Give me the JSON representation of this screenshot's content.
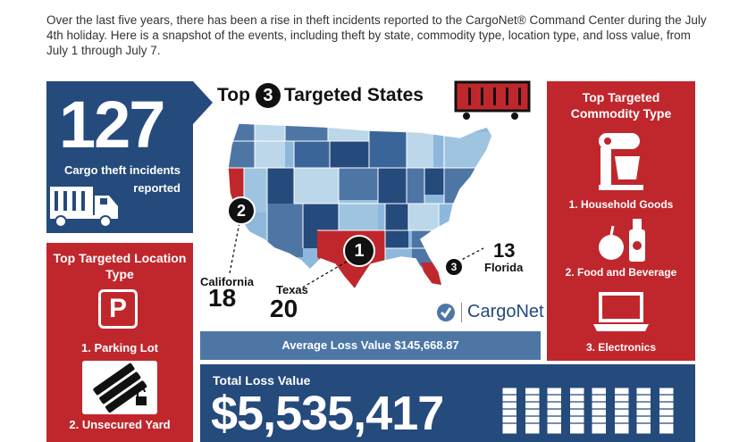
{
  "intro": "Over the last five years, there has been a rise in theft incidents reported to the CargoNet® Command Center during the July 4th holiday. Here is a snapshot of the events, including theft by state, commodity type, location type, and loss value, from July 1 through July 7.",
  "incidents": {
    "count": "127",
    "label": "Cargo theft incidents reported"
  },
  "location": {
    "heading": "Top Targeted Location Type",
    "parking_glyph": "P",
    "items": [
      "1. Parking Lot",
      "2. Unsecured Yard"
    ]
  },
  "states": {
    "title_pre": "Top",
    "title_num": "3",
    "title_post": "Targeted States",
    "ranks": [
      {
        "rank": "1",
        "name": "Texas",
        "count": "20"
      },
      {
        "rank": "2",
        "name": "California",
        "count": "18"
      },
      {
        "rank": "3",
        "name": "Florida",
        "count": "13"
      }
    ]
  },
  "logo": "CargoNet",
  "average": "Average Loss Value  $145,668.87",
  "commodity": {
    "heading": "Top Targeted Commodity Type",
    "items": [
      "1. Household Goods",
      "2. Food and Beverage",
      "3. Electronics"
    ]
  },
  "total": {
    "label": "Total Loss Value",
    "value": "$5,535,417"
  },
  "colors": {
    "navy": "#254a7c",
    "red": "#c0272d",
    "steel": "#4d76a5"
  }
}
